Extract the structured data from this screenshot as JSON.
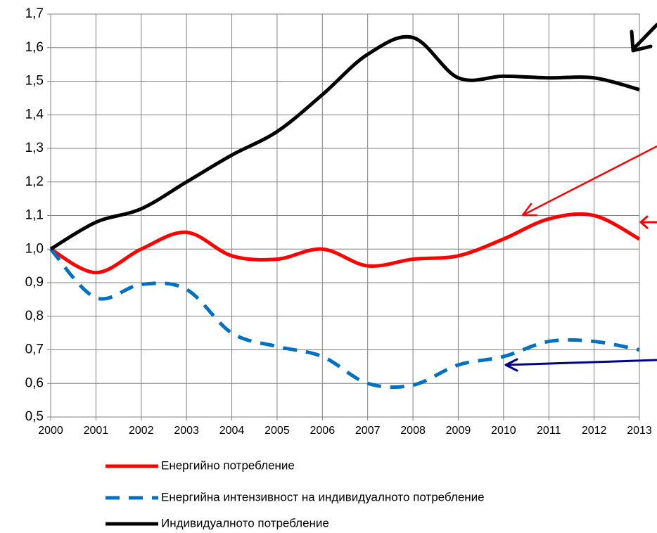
{
  "chart_data": {
    "type": "line",
    "x": [
      2000,
      2001,
      2002,
      2003,
      2004,
      2005,
      2006,
      2007,
      2008,
      2009,
      2010,
      2011,
      2012,
      2013
    ],
    "xlim": [
      2000,
      2013
    ],
    "xticks": [
      2000,
      2001,
      2002,
      2003,
      2004,
      2005,
      2006,
      2007,
      2008,
      2009,
      2010,
      2011,
      2012,
      2013
    ],
    "ylim": [
      0.5,
      1.7
    ],
    "yticks": [
      {
        "value": 0.5,
        "label": "0,5"
      },
      {
        "value": 0.6,
        "label": "0,6"
      },
      {
        "value": 0.7,
        "label": "0,7"
      },
      {
        "value": 0.8,
        "label": "0,8"
      },
      {
        "value": 0.9,
        "label": "0,9"
      },
      {
        "value": 1.0,
        "label": "1,0"
      },
      {
        "value": 1.1,
        "label": "1,1"
      },
      {
        "value": 1.2,
        "label": "1,2"
      },
      {
        "value": 1.3,
        "label": "1,3"
      },
      {
        "value": 1.4,
        "label": "1,4"
      },
      {
        "value": 1.5,
        "label": "1,5"
      },
      {
        "value": 1.6,
        "label": "1,6"
      },
      {
        "value": 1.7,
        "label": "1,7"
      }
    ],
    "grid": true,
    "legend": "bottom",
    "series": [
      {
        "name": "Енергийно потребление",
        "color": "#ff0000",
        "dashed": false,
        "values": [
          1.0,
          0.93,
          1.0,
          1.05,
          0.98,
          0.97,
          1.0,
          0.95,
          0.97,
          0.98,
          1.03,
          1.09,
          1.1,
          1.03
        ]
      },
      {
        "name": "Енергийна интензивност на индивидуалното потребление",
        "color": "#0070c0",
        "dashed": true,
        "values": [
          1.0,
          0.855,
          0.895,
          0.88,
          0.75,
          0.71,
          0.68,
          0.6,
          0.595,
          0.655,
          0.68,
          0.725,
          0.725,
          0.7
        ]
      },
      {
        "name": "Индивидуалното потребление",
        "color": "#000000",
        "dashed": false,
        "values": [
          1.0,
          1.08,
          1.12,
          1.2,
          1.28,
          1.35,
          1.46,
          1.58,
          1.63,
          1.51,
          1.515,
          1.51,
          1.51,
          1.475
        ]
      }
    ]
  }
}
